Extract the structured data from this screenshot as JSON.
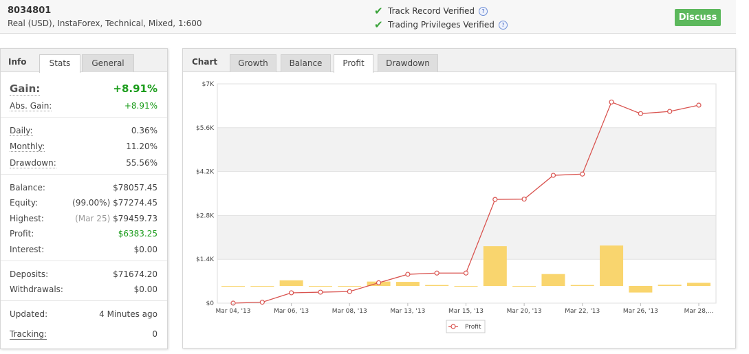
{
  "header": {
    "account_id": "8034801",
    "account_desc": "Real (USD), InstaForex, Technical, Mixed, 1:600",
    "verified_1": "Track Record Verified",
    "verified_2": "Trading Privileges Verified",
    "help_glyph": "?",
    "check_glyph": "✔",
    "discuss_label": "Discuss"
  },
  "info": {
    "title": "Info",
    "tabs": [
      "Stats",
      "General"
    ],
    "active_tab": "Stats",
    "gain_label": "Gain:",
    "gain_value": "+8.91%",
    "abs_gain_label": "Abs. Gain:",
    "abs_gain_value": "+8.91%",
    "daily_label": "Daily:",
    "daily_value": "0.36%",
    "monthly_label": "Monthly:",
    "monthly_value": "11.20%",
    "drawdown_label": "Drawdown:",
    "drawdown_value": "55.56%",
    "balance_label": "Balance:",
    "balance_value": "$78057.45",
    "equity_label": "Equity:",
    "equity_note": "(99.00%)",
    "equity_value": "$77274.45",
    "highest_label": "Highest:",
    "highest_note": "(Mar 25)",
    "highest_value": "$79459.73",
    "profit_label": "Profit:",
    "profit_value": "$6383.25",
    "interest_label": "Interest:",
    "interest_value": "$0.00",
    "deposits_label": "Deposits:",
    "deposits_value": "$71674.20",
    "withdrawals_label": "Withdrawals:",
    "withdrawals_value": "$0.00",
    "updated_label": "Updated:",
    "updated_value": "4 Minutes ago",
    "tracking_label": "Tracking:",
    "tracking_value": "0"
  },
  "chart_panel": {
    "title": "Chart",
    "tabs": [
      "Growth",
      "Balance",
      "Profit",
      "Drawdown"
    ],
    "active_tab": "Profit"
  },
  "colors": {
    "line": "#d9534f",
    "bar": "#f9d56e",
    "green": "#1a9c1a",
    "discuss": "#5cb85c"
  },
  "chart_data": {
    "type": "line",
    "title": "",
    "ylim": [
      0,
      7000
    ],
    "y_ticks": [
      "$0",
      "$1.4K",
      "$2.8K",
      "$4.2K",
      "$5.6K",
      "$7K"
    ],
    "x_ticks": [
      "Mar 04, '13",
      "Mar 06, '13",
      "Mar 08, '13",
      "Mar 13, '13",
      "Mar 15, '13",
      "Mar 20, '13",
      "Mar 22, '13",
      "Mar 26, '13",
      "Mar 28,..."
    ],
    "series": [
      {
        "name": "Profit",
        "type": "line",
        "values": [
          0,
          30,
          330,
          350,
          370,
          650,
          920,
          960,
          960,
          3310,
          3320,
          4080,
          4120,
          6420,
          6050,
          6120,
          6320
        ]
      },
      {
        "type": "bar",
        "values": [
          0,
          0,
          180,
          0,
          0,
          140,
          130,
          30,
          0,
          1270,
          0,
          380,
          30,
          1290,
          -210,
          40,
          100
        ]
      }
    ],
    "legend": [
      "Profit"
    ],
    "legend_position": "bottom-center",
    "grid": true
  }
}
